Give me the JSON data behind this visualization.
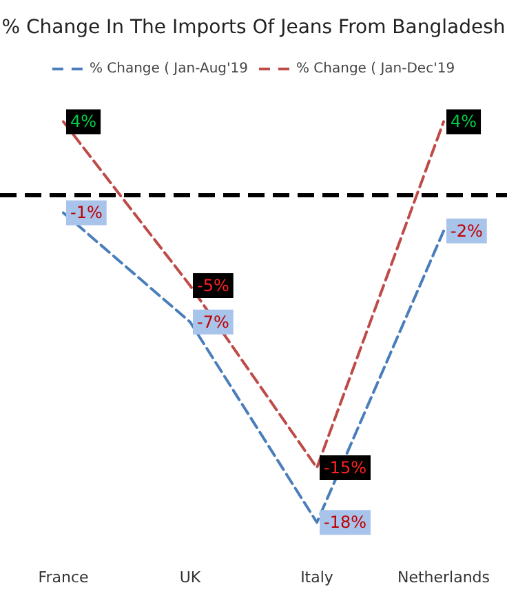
{
  "chart_data": {
    "type": "line",
    "title": "% Change In The Imports Of Jeans From Bangladesh",
    "categories": [
      "France",
      "UK",
      "Italy",
      "Netherlands"
    ],
    "series": [
      {
        "name": "% Change ( Jan-Aug'19",
        "color": "#4a7ebb",
        "values": [
          -1,
          -7,
          -18,
          -2
        ],
        "value_labels": [
          "-1%",
          "-7%",
          "-18%",
          "-2%"
        ]
      },
      {
        "name": "% Change ( Jan-Dec'19",
        "color": "#be4b48",
        "values": [
          4,
          -5,
          -15,
          4
        ],
        "value_labels": [
          "4%",
          "-5%",
          "-15%",
          "4%"
        ]
      }
    ],
    "ref_lines": [
      {
        "axis": "y",
        "value": 0,
        "color": "#000000",
        "line_style": "dashed"
      }
    ],
    "line_style": "dashed",
    "marker": "none",
    "legend": "top",
    "grid": false
  }
}
